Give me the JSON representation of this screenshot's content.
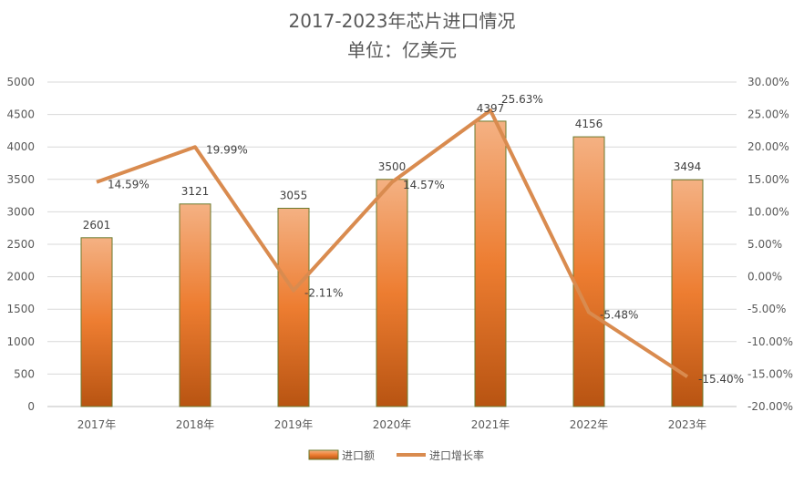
{
  "chart_data": {
    "type": "bar+line",
    "title": "2017-2023年芯片进口情况",
    "subtitle": "单位：亿美元",
    "categories": [
      "2017年",
      "2018年",
      "2019年",
      "2020年",
      "2021年",
      "2022年",
      "2023年"
    ],
    "series": [
      {
        "name": "进口额",
        "type": "bar",
        "axis": "left",
        "values": [
          2601,
          3121,
          3055,
          3500,
          4397,
          4156,
          3494
        ],
        "labels": [
          "2601",
          "3121",
          "3055",
          "3500",
          "4397",
          "4156",
          "3494"
        ]
      },
      {
        "name": "进口增长率",
        "type": "line",
        "axis": "right",
        "values": [
          14.59,
          19.99,
          -2.11,
          14.57,
          25.63,
          -5.48,
          -15.4
        ],
        "labels": [
          "14.59%",
          "19.99%",
          "-2.11%",
          "14.57%",
          "25.63%",
          "-5.48%",
          "-15.40%"
        ]
      }
    ],
    "y_left": {
      "range": [
        0,
        5000
      ],
      "ticks": [
        "0",
        "500",
        "1000",
        "1500",
        "2000",
        "2500",
        "3000",
        "3500",
        "4000",
        "4500",
        "5000"
      ]
    },
    "y_right": {
      "range": [
        -20,
        30
      ],
      "ticks": [
        "-20.00%",
        "-15.00%",
        "-10.00%",
        "-5.00%",
        "0.00%",
        "5.00%",
        "10.00%",
        "15.00%",
        "20.00%",
        "25.00%",
        "30.00%"
      ]
    },
    "grid": true,
    "legend": "bottom",
    "colors": {
      "bar_top": "#f4b183",
      "bar_mid": "#ed7d31",
      "bar_bottom": "#b85412",
      "bar_border": "#6b7a2e",
      "line": "#d98b4f"
    }
  }
}
